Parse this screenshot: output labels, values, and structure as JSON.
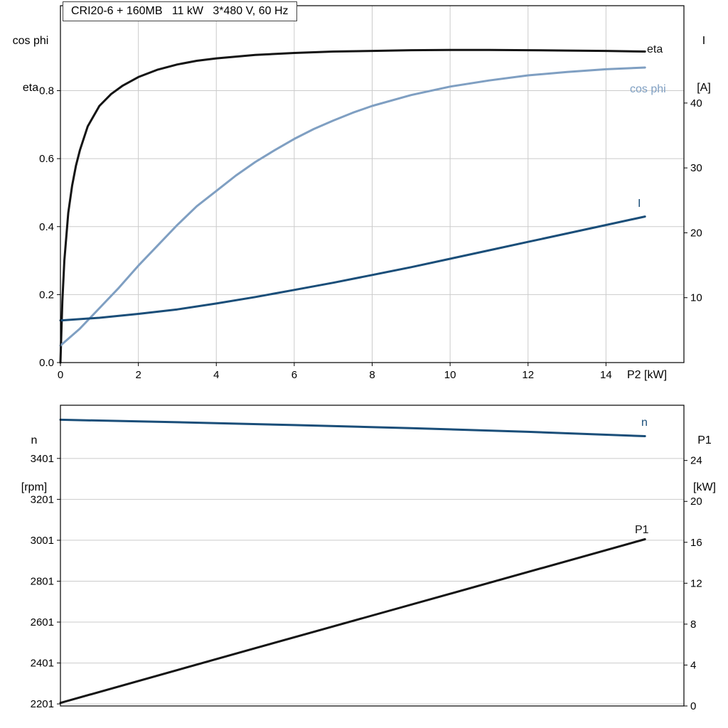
{
  "title": "CRI20-6 + 160MB   11 kW   3*480 V, 60 Hz",
  "chart_data": [
    {
      "type": "line",
      "name": "motor-performance",
      "x_axis": {
        "label": "P2 [kW]",
        "range": [
          0,
          16
        ],
        "ticks": [
          0,
          2,
          4,
          6,
          8,
          10,
          12,
          14
        ],
        "decimals": 0
      },
      "left_axis": {
        "title_lines": [
          "cos phi",
          "eta"
        ],
        "range": [
          0,
          1.05
        ],
        "ticks": [
          0,
          0.2,
          0.4,
          0.6,
          0.8
        ],
        "decimals": 1
      },
      "right_axis": {
        "title_lines": [
          "I",
          "[A]"
        ],
        "range": [
          0,
          55
        ],
        "ticks": [
          10,
          20,
          30,
          40
        ],
        "decimals": 0
      },
      "grid": {
        "vertical": true,
        "horizontal": true
      },
      "series": [
        {
          "name": "eta",
          "axis": "left",
          "color": "#141414",
          "x": [
            0,
            0.05,
            0.1,
            0.2,
            0.3,
            0.4,
            0.5,
            0.7,
            1,
            1.3,
            1.6,
            2,
            2.5,
            3,
            3.5,
            4,
            5,
            6,
            7,
            8,
            9,
            10,
            11,
            12,
            13,
            14,
            15
          ],
          "y": [
            0,
            0.18,
            0.3,
            0.44,
            0.52,
            0.58,
            0.625,
            0.695,
            0.755,
            0.79,
            0.815,
            0.84,
            0.862,
            0.877,
            0.888,
            0.895,
            0.905,
            0.911,
            0.915,
            0.917,
            0.919,
            0.92,
            0.92,
            0.919,
            0.918,
            0.917,
            0.915
          ]
        },
        {
          "name": "cos phi",
          "axis": "left",
          "color": "#7f9fc2",
          "x": [
            0,
            0.5,
            1,
            1.5,
            2,
            2.5,
            3,
            3.5,
            4,
            4.5,
            5,
            5.5,
            6,
            6.5,
            7,
            7.5,
            8,
            9,
            10,
            11,
            12,
            13,
            14,
            15
          ],
          "y": [
            0.05,
            0.1,
            0.16,
            0.22,
            0.285,
            0.345,
            0.405,
            0.46,
            0.505,
            0.55,
            0.59,
            0.625,
            0.658,
            0.687,
            0.712,
            0.735,
            0.755,
            0.787,
            0.812,
            0.83,
            0.845,
            0.855,
            0.863,
            0.868
          ]
        },
        {
          "name": "I",
          "axis": "right",
          "color": "#1a4e79",
          "x": [
            0,
            1,
            2,
            3,
            4,
            5,
            6,
            7,
            8,
            9,
            10,
            11,
            12,
            13,
            14,
            15
          ],
          "y": [
            6.5,
            6.9,
            7.5,
            8.2,
            9.1,
            10.1,
            11.2,
            12.3,
            13.5,
            14.7,
            16,
            17.3,
            18.6,
            19.9,
            21.2,
            22.5
          ]
        }
      ]
    },
    {
      "type": "line",
      "name": "speed-and-power",
      "x_axis": {
        "label": "",
        "range": [
          0,
          16
        ],
        "ticks": [],
        "decimals": 0
      },
      "left_axis": {
        "title_lines": [
          "n",
          "[rpm]"
        ],
        "range": [
          2191,
          3661
        ],
        "ticks": [
          2201,
          2401,
          2601,
          2801,
          3001,
          3201,
          3401
        ],
        "decimals": 0
      },
      "right_axis": {
        "title_lines": [
          "P1",
          "[kW]"
        ],
        "range": [
          0,
          29.4
        ],
        "ticks": [
          0,
          4,
          8,
          12,
          16,
          20,
          24
        ],
        "decimals": 0
      },
      "grid": {
        "vertical": false,
        "horizontal": true
      },
      "series": [
        {
          "name": "n",
          "axis": "left",
          "color": "#1a4e79",
          "x": [
            0,
            3,
            6,
            9,
            12,
            15
          ],
          "y": [
            3590,
            3578,
            3564,
            3549,
            3531,
            3510
          ]
        },
        {
          "name": "P1",
          "axis": "right",
          "color": "#141414",
          "x": [
            0,
            5,
            10,
            15
          ],
          "y": [
            0.3,
            5.65,
            10.97,
            16.3
          ]
        }
      ]
    }
  ]
}
